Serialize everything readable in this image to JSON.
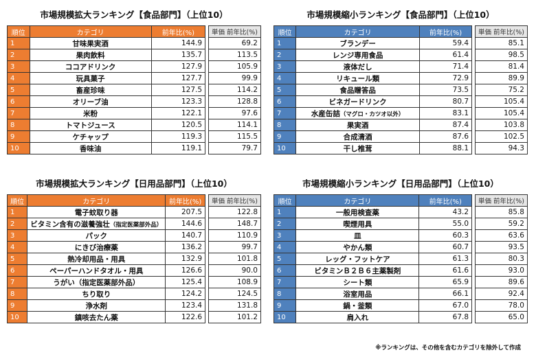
{
  "panels": [
    {
      "id": "food-expand",
      "title": "市場規模拡大ランキング【食品部門】（上位10）",
      "theme": "orange",
      "headers": {
        "rank": "順位",
        "category": "カテゴリ",
        "yoy": "前年比(%)",
        "unit_price": "単価 前年比(%)"
      },
      "rows": [
        {
          "rank": "1",
          "category": "甘味果実酒",
          "yoy": "144.9",
          "unit_price": "69.2"
        },
        {
          "rank": "2",
          "category": "果肉飲料",
          "yoy": "135.7",
          "unit_price": "113.5"
        },
        {
          "rank": "3",
          "category": "ココアドリンク",
          "yoy": "127.9",
          "unit_price": "105.9"
        },
        {
          "rank": "4",
          "category": "玩具菓子",
          "yoy": "127.7",
          "unit_price": "99.9"
        },
        {
          "rank": "5",
          "category": "畜産珍味",
          "yoy": "127.5",
          "unit_price": "114.2"
        },
        {
          "rank": "6",
          "category": "オリーブ油",
          "yoy": "123.3",
          "unit_price": "128.8"
        },
        {
          "rank": "7",
          "category": "米粉",
          "yoy": "122.1",
          "unit_price": "97.6"
        },
        {
          "rank": "8",
          "category": "トマトジュース",
          "yoy": "120.5",
          "unit_price": "114.1"
        },
        {
          "rank": "9",
          "category": "ケチャップ",
          "yoy": "119.3",
          "unit_price": "115.5"
        },
        {
          "rank": "10",
          "category": "香味油",
          "yoy": "119.1",
          "unit_price": "79.7"
        }
      ]
    },
    {
      "id": "food-shrink",
      "title": "市場規模縮小ランキング【食品部門】（上位10）",
      "theme": "blue",
      "headers": {
        "rank": "順位",
        "category": "カテゴリ",
        "yoy": "前年比(%)",
        "unit_price": "単価 前年比(%)"
      },
      "rows": [
        {
          "rank": "1",
          "category": "ブランデー",
          "yoy": "59.4",
          "unit_price": "85.1"
        },
        {
          "rank": "2",
          "category": "レンジ専用食品",
          "yoy": "61.4",
          "unit_price": "98.5"
        },
        {
          "rank": "3",
          "category": "液体だし",
          "yoy": "71.4",
          "unit_price": "81.4"
        },
        {
          "rank": "4",
          "category": "リキュール類",
          "yoy": "72.9",
          "unit_price": "89.9"
        },
        {
          "rank": "5",
          "category": "食品贈答品",
          "yoy": "73.5",
          "unit_price": "75.2"
        },
        {
          "rank": "6",
          "category": "ビネガードリンク",
          "yoy": "80.7",
          "unit_price": "105.4"
        },
        {
          "rank": "7",
          "category": "水産缶詰",
          "category_note": "（マグロ・カツオ以外）",
          "yoy": "83.1",
          "unit_price": "105.4"
        },
        {
          "rank": "8",
          "category": "果実酒",
          "yoy": "87.4",
          "unit_price": "103.8"
        },
        {
          "rank": "9",
          "category": "合成清酒",
          "yoy": "87.6",
          "unit_price": "102.5"
        },
        {
          "rank": "10",
          "category": "干し椎茸",
          "yoy": "88.1",
          "unit_price": "94.3"
        }
      ]
    },
    {
      "id": "daily-expand",
      "title": "市場規模拡大ランキング【日用品部門】（上位10）",
      "theme": "orange",
      "headers": {
        "rank": "順位",
        "category": "カテゴリ",
        "yoy": "前年比(%)",
        "unit_price": "単価 前年比(%)"
      },
      "rows": [
        {
          "rank": "1",
          "category": "電子蚊取り器",
          "yoy": "207.5",
          "unit_price": "122.8"
        },
        {
          "rank": "2",
          "category": "ビタミン含有の滋養強壮",
          "category_note": "（指定医薬部外品）",
          "yoy": "144.6",
          "unit_price": "148.7"
        },
        {
          "rank": "3",
          "category": "パック",
          "yoy": "140.7",
          "unit_price": "110.9"
        },
        {
          "rank": "4",
          "category": "にきび治療薬",
          "yoy": "136.2",
          "unit_price": "99.7"
        },
        {
          "rank": "5",
          "category": "熱冷却用品・用具",
          "yoy": "132.9",
          "unit_price": "101.8"
        },
        {
          "rank": "6",
          "category": "ペーパーハンドタオル・用具",
          "yoy": "126.6",
          "unit_price": "90.0"
        },
        {
          "rank": "7",
          "category": "うがい（指定医薬部外品）",
          "yoy": "125.4",
          "unit_price": "108.9"
        },
        {
          "rank": "8",
          "category": "ちり取り",
          "yoy": "124.2",
          "unit_price": "124.5"
        },
        {
          "rank": "9",
          "category": "浄水剤",
          "yoy": "123.4",
          "unit_price": "131.8"
        },
        {
          "rank": "10",
          "category": "鎮咳去たん薬",
          "yoy": "122.6",
          "unit_price": "101.2"
        }
      ]
    },
    {
      "id": "daily-shrink",
      "title": "市場規模縮小ランキング【日用品部門】（上位10）",
      "theme": "blue",
      "headers": {
        "rank": "順位",
        "category": "カテゴリ",
        "yoy": "前年比(%)",
        "unit_price": "単価 前年比(%)"
      },
      "rows": [
        {
          "rank": "1",
          "category": "一般用検査薬",
          "yoy": "43.2",
          "unit_price": "85.8"
        },
        {
          "rank": "2",
          "category": "喫煙用具",
          "yoy": "55.0",
          "unit_price": "59.2"
        },
        {
          "rank": "3",
          "category": "皿",
          "yoy": "60.3",
          "unit_price": "63.6"
        },
        {
          "rank": "4",
          "category": "やかん類",
          "yoy": "60.7",
          "unit_price": "93.5"
        },
        {
          "rank": "5",
          "category": "レッグ・フットケア",
          "yoy": "61.3",
          "unit_price": "80.3"
        },
        {
          "rank": "6",
          "category": "ビタミンＢ２Ｂ６主薬製剤",
          "yoy": "61.6",
          "unit_price": "93.0"
        },
        {
          "rank": "7",
          "category": "シート類",
          "yoy": "65.9",
          "unit_price": "89.6"
        },
        {
          "rank": "8",
          "category": "浴室用品",
          "yoy": "66.1",
          "unit_price": "92.4"
        },
        {
          "rank": "9",
          "category": "鍋・釜類",
          "yoy": "67.0",
          "unit_price": "78.0"
        },
        {
          "rank": "10",
          "category": "肩入れ",
          "yoy": "67.8",
          "unit_price": "65.0"
        }
      ]
    }
  ],
  "footnote": "※ランキングは、その他を含むカテゴリを除外して作成"
}
